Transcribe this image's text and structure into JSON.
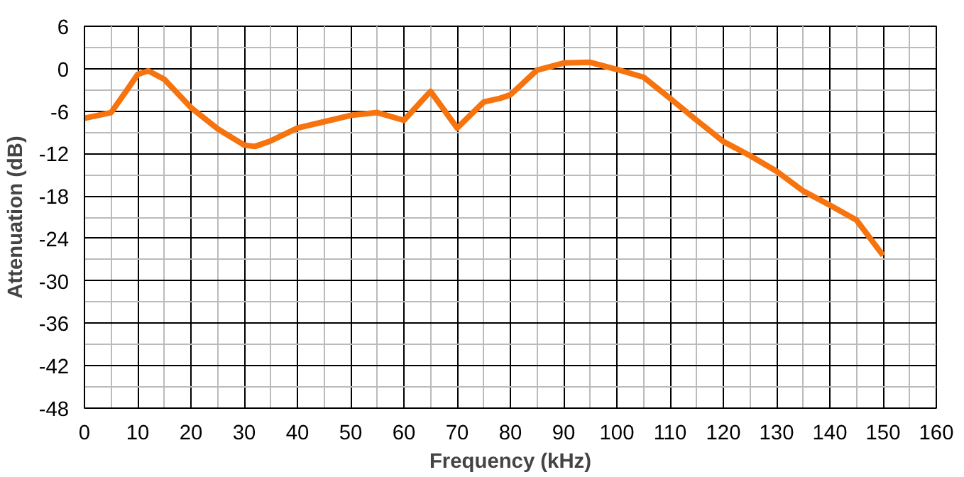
{
  "chart_data": {
    "type": "line",
    "xlabel": "Frequency (kHz)",
    "ylabel": "Attenuation (dB)",
    "x": [
      0,
      5,
      8,
      10,
      12,
      15,
      20,
      25,
      30,
      32,
      35,
      40,
      45,
      50,
      55,
      60,
      65,
      70,
      75,
      78,
      80,
      85,
      90,
      95,
      100,
      105,
      110,
      115,
      120,
      125,
      130,
      135,
      140,
      145,
      150
    ],
    "series": [
      {
        "color": "#f7730e",
        "values": [
          -7,
          -6.2,
          -3,
          -0.8,
          -0.3,
          -1.5,
          -5.5,
          -8.5,
          -10.8,
          -11,
          -10.2,
          -8.4,
          -7.5,
          -6.6,
          -6.2,
          -7.3,
          -3.2,
          -8.4,
          -4.7,
          -4.2,
          -3.7,
          -0.2,
          0.8,
          0.9,
          -0.1,
          -1.2,
          -4.2,
          -7.3,
          -10.3,
          -12.3,
          -14.5,
          -17.3,
          -19.3,
          -21.4,
          -26.4
        ]
      }
    ],
    "xlim": [
      0,
      160
    ],
    "xticks": [
      0,
      10,
      20,
      30,
      40,
      50,
      60,
      70,
      80,
      90,
      100,
      110,
      120,
      130,
      140,
      150,
      160
    ],
    "ylim": [
      -48,
      6
    ],
    "yticks": [
      -48,
      -42,
      -36,
      -30,
      -24,
      -18,
      -12,
      -6,
      0,
      6
    ],
    "grid": true,
    "marker": "none",
    "line_style": "solid"
  }
}
